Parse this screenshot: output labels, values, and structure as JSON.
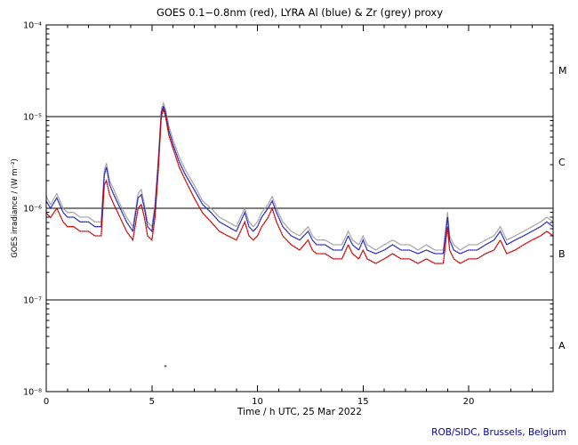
{
  "footer": {
    "credit": "ROB/SIDC, Brussels, Belgium",
    "color": "#000099"
  },
  "chart_data": {
    "type": "line",
    "title": "GOES 0.1−0.8nm (red), LYRA Al (blue) & Zr (grey) proxy",
    "xlabel": "Time / h UTC, 25 Mar 2022",
    "ylabel": "GOES irradiance / (W m⁻²)",
    "xlim": [
      0,
      24
    ],
    "ylim": [
      1e-08,
      0.0001
    ],
    "y_scale": "log",
    "grid": false,
    "x_major_ticks": [
      0,
      5,
      10,
      15,
      20
    ],
    "x_minor_step": 1,
    "y_tick_values": [
      0.0001,
      1e-05,
      1e-06,
      1e-07,
      1e-08
    ],
    "y_tick_labels": [
      "10⁻⁴",
      "10⁻⁵",
      "10⁻⁶",
      "10⁻⁷",
      "10⁻⁸"
    ],
    "hlines": [
      1e-05,
      1e-06,
      1e-07
    ],
    "flare_class_labels": [
      {
        "label": "M",
        "y": 3.2e-05
      },
      {
        "label": "C",
        "y": 3.2e-06
      },
      {
        "label": "B",
        "y": 3.2e-07
      },
      {
        "label": "A",
        "y": 3.2e-08
      }
    ],
    "x": [
      0,
      0.2,
      0.5,
      0.8,
      1.0,
      1.3,
      1.6,
      2.0,
      2.3,
      2.6,
      2.75,
      2.85,
      3.0,
      3.2,
      3.5,
      3.8,
      4.1,
      4.35,
      4.5,
      4.65,
      4.8,
      5.0,
      5.15,
      5.3,
      5.45,
      5.55,
      5.65,
      5.8,
      6.0,
      6.3,
      6.6,
      7.0,
      7.4,
      7.8,
      8.2,
      8.6,
      9.0,
      9.2,
      9.4,
      9.6,
      9.8,
      10.0,
      10.2,
      10.5,
      10.7,
      10.9,
      11.2,
      11.6,
      12.0,
      12.4,
      12.6,
      12.8,
      13.2,
      13.6,
      14.0,
      14.3,
      14.5,
      14.8,
      15.0,
      15.2,
      15.6,
      16.0,
      16.4,
      16.8,
      17.2,
      17.6,
      18.0,
      18.4,
      18.8,
      19.0,
      19.1,
      19.3,
      19.6,
      20.0,
      20.4,
      20.8,
      21.2,
      21.5,
      21.8,
      22.2,
      22.6,
      23.0,
      23.4,
      23.7,
      24.0
    ],
    "series": [
      {
        "name": "GOES 0.1−0.8nm",
        "color": "#cc0000",
        "values": [
          8.9e-07,
          7.9e-07,
          1e-06,
          7.1e-07,
          6.3e-07,
          6.3e-07,
          5.6e-07,
          5.6e-07,
          5e-07,
          5e-07,
          1.8e-06,
          2e-06,
          1.4e-06,
          1.1e-06,
          7.9e-07,
          5.6e-07,
          4.5e-07,
          1e-06,
          1.1e-06,
          7.9e-07,
          5e-07,
          4.5e-07,
          7.9e-07,
          2.5e-06,
          1e-05,
          1.2e-05,
          1e-05,
          6.3e-06,
          4.5e-06,
          2.8e-06,
          2e-06,
          1.3e-06,
          8.9e-07,
          7.1e-07,
          5.6e-07,
          5e-07,
          4.5e-07,
          5.6e-07,
          7.1e-07,
          5e-07,
          4.5e-07,
          5e-07,
          6.3e-07,
          7.9e-07,
          1e-06,
          7.1e-07,
          5e-07,
          4e-07,
          3.5e-07,
          4.5e-07,
          3.5e-07,
          3.2e-07,
          3.2e-07,
          2.8e-07,
          2.8e-07,
          4e-07,
          3.2e-07,
          2.8e-07,
          3.5e-07,
          2.8e-07,
          2.5e-07,
          2.8e-07,
          3.2e-07,
          2.8e-07,
          2.8e-07,
          2.5e-07,
          2.8e-07,
          2.5e-07,
          2.5e-07,
          6.3e-07,
          3.5e-07,
          2.8e-07,
          2.5e-07,
          2.8e-07,
          2.8e-07,
          3.2e-07,
          3.5e-07,
          4.5e-07,
          3.2e-07,
          3.5e-07,
          4e-07,
          4.5e-07,
          5e-07,
          5.6e-07,
          5e-07
        ]
      },
      {
        "name": "LYRA Al proxy",
        "color": "#2222bb",
        "values": [
          1.2e-06,
          1e-06,
          1.3e-06,
          9e-07,
          8e-07,
          8e-07,
          7.1e-07,
          7.1e-07,
          6.3e-07,
          6.3e-07,
          2.3e-06,
          2.8e-06,
          1.8e-06,
          1.4e-06,
          1e-06,
          7.1e-07,
          5.6e-07,
          1.3e-06,
          1.4e-06,
          1e-06,
          6.3e-07,
          5.6e-07,
          1e-06,
          3e-06,
          1.1e-05,
          1.3e-05,
          1.1e-05,
          7.1e-06,
          5e-06,
          3.2e-06,
          2.3e-06,
          1.6e-06,
          1.1e-06,
          9e-07,
          7.1e-07,
          6.3e-07,
          5.6e-07,
          7.1e-07,
          9e-07,
          6.3e-07,
          5.6e-07,
          6.3e-07,
          8e-07,
          1e-06,
          1.2e-06,
          9e-07,
          6.3e-07,
          5e-07,
          4.5e-07,
          5.6e-07,
          4.5e-07,
          4e-07,
          4e-07,
          3.5e-07,
          3.5e-07,
          5e-07,
          4e-07,
          3.5e-07,
          4.5e-07,
          3.5e-07,
          3.2e-07,
          3.5e-07,
          4e-07,
          3.5e-07,
          3.5e-07,
          3.2e-07,
          3.5e-07,
          3.2e-07,
          3.2e-07,
          8e-07,
          4.5e-07,
          3.5e-07,
          3.2e-07,
          3.5e-07,
          3.5e-07,
          4e-07,
          4.5e-07,
          5.6e-07,
          4e-07,
          4.5e-07,
          5e-07,
          5.6e-07,
          6.3e-07,
          7.1e-07,
          6.3e-07
        ]
      },
      {
        "name": "LYRA Zr proxy",
        "color": "#a0a0a0",
        "values": [
          1.35e-06,
          1.1e-06,
          1.45e-06,
          1e-06,
          9e-07,
          9e-07,
          8e-07,
          8e-07,
          7.1e-07,
          7.1e-07,
          2.6e-06,
          3.1e-06,
          2e-06,
          1.6e-06,
          1.1e-06,
          8e-07,
          6.3e-07,
          1.45e-06,
          1.6e-06,
          1.1e-06,
          7.1e-07,
          6.3e-07,
          1.1e-06,
          3.4e-06,
          1.2e-05,
          1.4e-05,
          1.2e-05,
          8e-06,
          5.6e-06,
          3.6e-06,
          2.6e-06,
          1.8e-06,
          1.2e-06,
          1e-06,
          8e-07,
          7.1e-07,
          6.3e-07,
          8e-07,
          1e-06,
          7.1e-07,
          6.3e-07,
          7.1e-07,
          9e-07,
          1.1e-06,
          1.35e-06,
          1e-06,
          7.1e-07,
          5.6e-07,
          5e-07,
          6.3e-07,
          5e-07,
          4.5e-07,
          4.5e-07,
          4e-07,
          4e-07,
          5.6e-07,
          4.5e-07,
          4e-07,
          5e-07,
          4e-07,
          3.5e-07,
          4e-07,
          4.5e-07,
          4e-07,
          4e-07,
          3.5e-07,
          4e-07,
          3.5e-07,
          3.5e-07,
          9e-07,
          5e-07,
          4e-07,
          3.5e-07,
          4e-07,
          4e-07,
          4.5e-07,
          5e-07,
          6.3e-07,
          4.5e-07,
          5e-07,
          5.6e-07,
          6.3e-07,
          7.1e-07,
          8e-07,
          7.1e-07
        ]
      }
    ],
    "outliers": [
      {
        "x": 5.64,
        "y": 1.9e-08,
        "color": "#707070"
      }
    ]
  }
}
